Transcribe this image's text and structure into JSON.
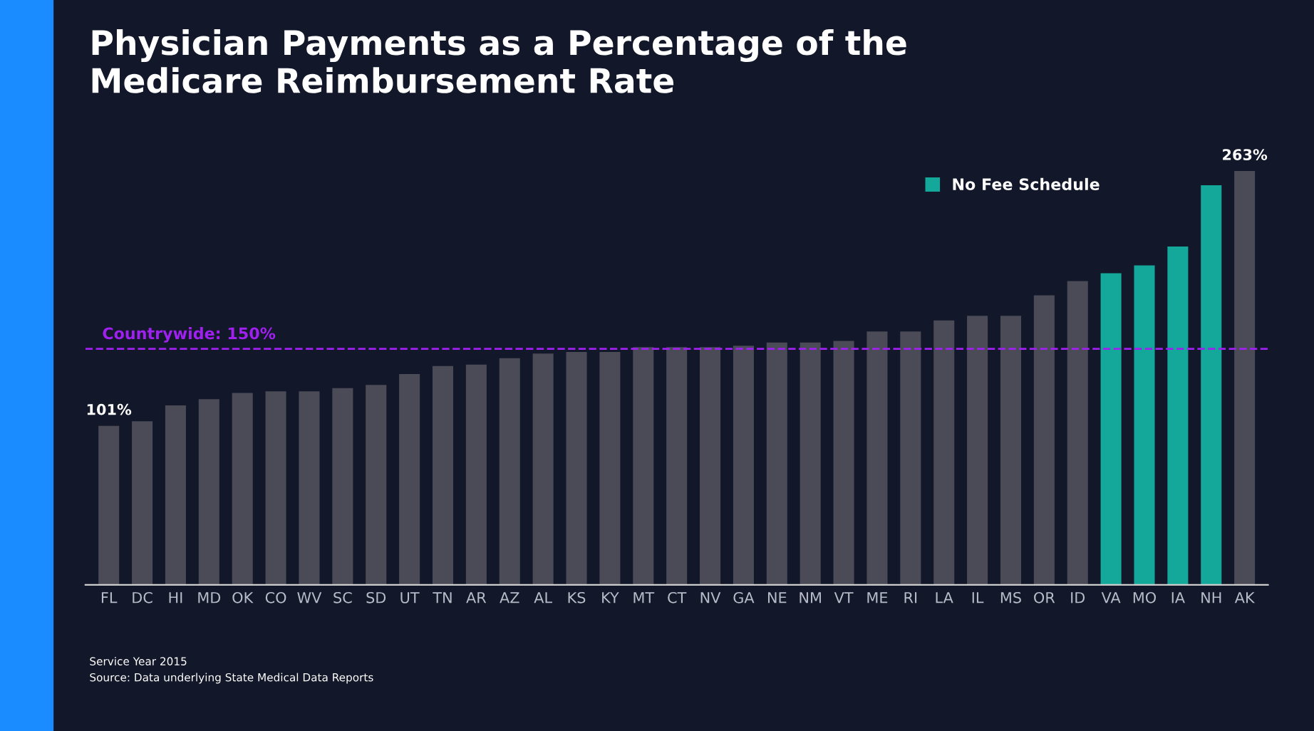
{
  "chart_data": {
    "type": "bar",
    "title": "Physician Payments as a Percentage of the\nMedicare Reimbursement Rate",
    "categories": [
      "FL",
      "DC",
      "HI",
      "MD",
      "OK",
      "CO",
      "WV",
      "SC",
      "SD",
      "UT",
      "TN",
      "AR",
      "AZ",
      "AL",
      "KS",
      "KY",
      "MT",
      "CT",
      "NV",
      "GA",
      "NE",
      "NM",
      "VT",
      "ME",
      "RI",
      "LA",
      "IL",
      "MS",
      "OR",
      "ID",
      "VA",
      "MO",
      "IA",
      "NH",
      "AK"
    ],
    "series": [
      {
        "color": "#4a4b57",
        "values": [
          101,
          104,
          114,
          118,
          122,
          123,
          123,
          125,
          127,
          134,
          139,
          140,
          144,
          147,
          148,
          148,
          151,
          151,
          151,
          152,
          154,
          154,
          155,
          161,
          161,
          168,
          171,
          171,
          184,
          193,
          null,
          null,
          null,
          null,
          263
        ],
        "value_labels": [
          "101%",
          null,
          null,
          null,
          null,
          null,
          null,
          null,
          null,
          null,
          null,
          null,
          null,
          null,
          null,
          null,
          null,
          null,
          null,
          null,
          null,
          null,
          null,
          null,
          null,
          null,
          null,
          null,
          null,
          null,
          null,
          null,
          null,
          null,
          "263%"
        ]
      },
      {
        "name": "No Fee Schedule",
        "color": "#13a89a",
        "values": [
          null,
          null,
          null,
          null,
          null,
          null,
          null,
          null,
          null,
          null,
          null,
          null,
          null,
          null,
          null,
          null,
          null,
          null,
          null,
          null,
          null,
          null,
          null,
          null,
          null,
          null,
          null,
          null,
          null,
          null,
          198,
          203,
          215,
          254,
          null
        ]
      }
    ],
    "tick_labels": "x",
    "grid": false,
    "legend": "top right",
    "ref_lines": [
      {
        "axis": "y",
        "value": 150,
        "label": "Countrywide: 150%",
        "color": "#a020f0",
        "line_style": "dashed"
      }
    ],
    "annotations": [
      "Service Year 2015",
      "Source: Data underlying State Medical Data Reports"
    ]
  }
}
